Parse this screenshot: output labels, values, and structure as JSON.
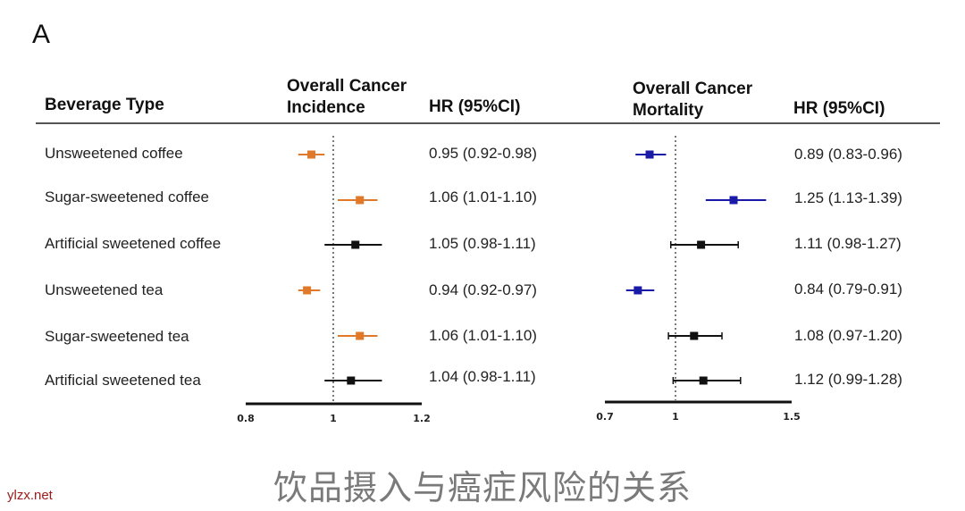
{
  "panel_label": "A",
  "headers": {
    "beverage": "Beverage Type",
    "incidence_line1": "Overall Cancer",
    "incidence_line2": "Incidence",
    "hr1": "HR (95%CI)",
    "mortality_line1": "Overall Cancer",
    "mortality_line2": "Mortality",
    "hr2": "HR (95%CI)"
  },
  "rows": [
    {
      "label": "Unsweetened coffee",
      "inc_text": "0.95 (0.92-0.98)",
      "mort_text": "0.89  (0.83-0.96)"
    },
    {
      "label": "Sugar-sweetened coffee",
      "inc_text": "1.06 (1.01-1.10)",
      "mort_text": "1.25 (1.13-1.39)"
    },
    {
      "label": "Artificial sweetened coffee",
      "inc_text": "1.05 (0.98-1.11)",
      "mort_text": "1.11 (0.98-1.27)"
    },
    {
      "label": "Unsweetened tea",
      "inc_text": "0.94 (0.92-0.97)",
      "mort_text": "0.84 (0.79-0.91)"
    },
    {
      "label": "Sugar-sweetened tea",
      "inc_text": "1.06 (1.01-1.10)",
      "mort_text": "1.08 (0.97-1.20)"
    },
    {
      "label": "Artificial sweetened tea",
      "inc_text": "1.04 (0.98-1.11)",
      "mort_text": "1.12 (0.99-1.28)"
    }
  ],
  "colors": {
    "protective_incidence": "#e07a2a",
    "protective_mortality": "#1a1aa8",
    "harmful_incidence": "#e07a2a",
    "harmful_mortality": "#1a1aa8",
    "null": "#111111"
  },
  "chart_data": [
    {
      "type": "forest",
      "title": "Overall Cancer Incidence",
      "xlim": [
        0.8,
        1.2
      ],
      "ticks": [
        "0.8",
        "1",
        "1.2"
      ],
      "reference": 1,
      "categories": [
        "Unsweetened coffee",
        "Sugar-sweetened coffee",
        "Artificial sweetened coffee",
        "Unsweetened tea",
        "Sugar-sweetened tea",
        "Artificial sweetened tea"
      ],
      "hr": [
        0.95,
        1.06,
        1.05,
        0.94,
        1.06,
        1.04
      ],
      "lower": [
        0.92,
        1.01,
        0.98,
        0.92,
        1.01,
        0.98
      ],
      "upper": [
        0.98,
        1.1,
        1.11,
        0.97,
        1.1,
        1.11
      ],
      "significant": [
        true,
        true,
        false,
        true,
        true,
        false
      ]
    },
    {
      "type": "forest",
      "title": "Overall Cancer Mortality",
      "xlim": [
        0.7,
        1.5
      ],
      "ticks": [
        "0.7",
        "1",
        "1.5"
      ],
      "reference": 1,
      "categories": [
        "Unsweetened coffee",
        "Sugar-sweetened coffee",
        "Artificial sweetened coffee",
        "Unsweetened tea",
        "Sugar-sweetened tea",
        "Artificial sweetened tea"
      ],
      "hr": [
        0.89,
        1.25,
        1.11,
        0.84,
        1.08,
        1.12
      ],
      "lower": [
        0.83,
        1.13,
        0.98,
        0.79,
        0.97,
        0.99
      ],
      "upper": [
        0.96,
        1.39,
        1.27,
        0.91,
        1.2,
        1.28
      ],
      "significant": [
        true,
        true,
        false,
        true,
        false,
        false
      ]
    }
  ],
  "footer_title": "饮品摄入与癌症风险的关系",
  "watermark": "ylzx.net"
}
